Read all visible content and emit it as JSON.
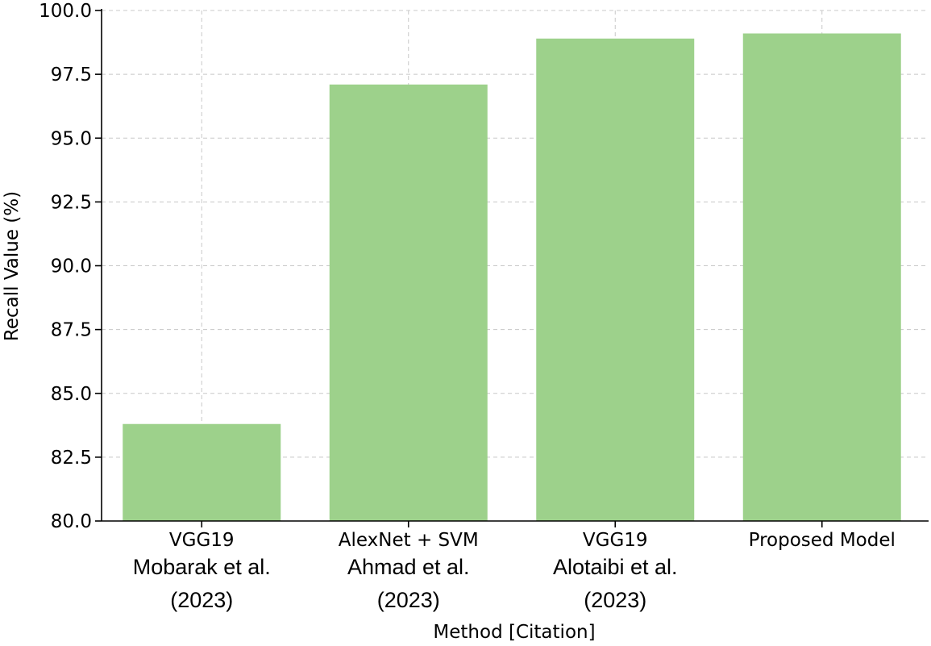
{
  "chart_data": {
    "type": "bar",
    "categories": [
      {
        "method": "VGG19",
        "citation": [
          "Mobarak et al.",
          "(2023)"
        ]
      },
      {
        "method": "AlexNet + SVM",
        "citation": [
          "Ahmad et al.",
          "(2023)"
        ]
      },
      {
        "method": "VGG19",
        "citation": [
          "Alotaibi et al.",
          "(2023)"
        ]
      },
      {
        "method": "Proposed Model",
        "citation": []
      }
    ],
    "values": [
      83.8,
      97.1,
      98.9,
      99.1
    ],
    "xlabel": "Method [Citation]",
    "ylabel": "Recall Value (%)",
    "ylim": [
      80.0,
      100.0
    ],
    "yticks": [
      "80.0",
      "82.5",
      "85.0",
      "87.5",
      "90.0",
      "92.5",
      "95.0",
      "97.5",
      "100.0"
    ],
    "grid": true,
    "bar_color": "#9dd18b"
  }
}
